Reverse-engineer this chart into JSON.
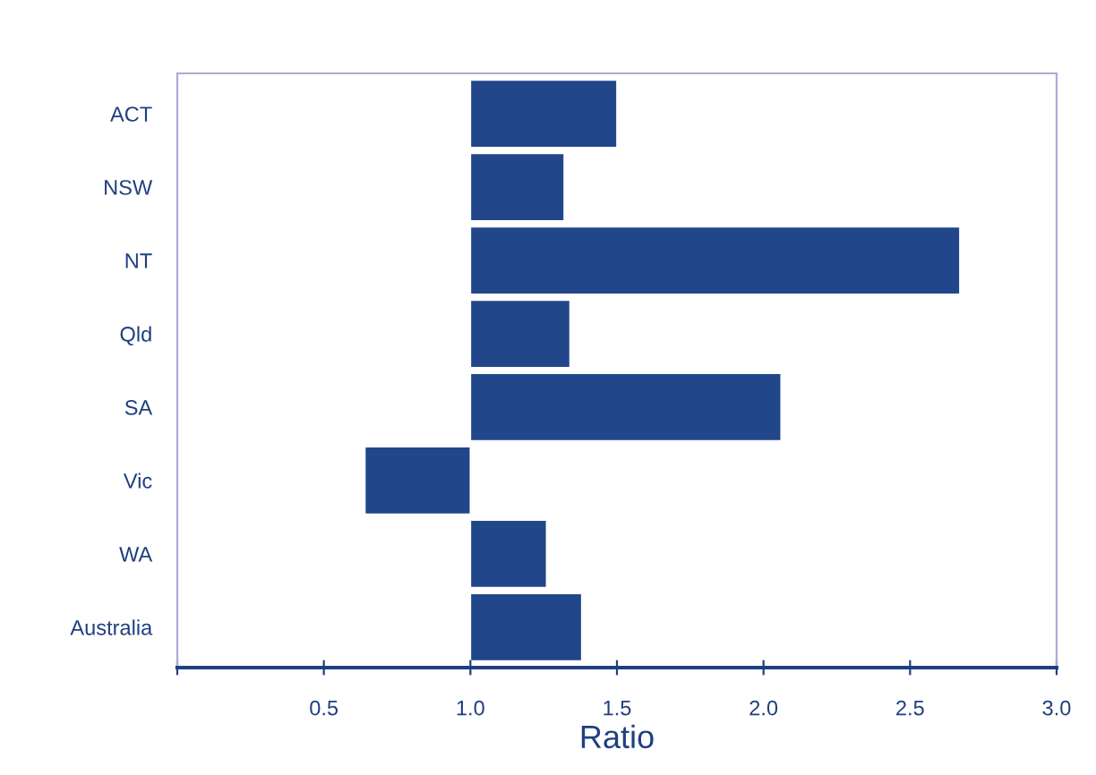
{
  "chart_data": {
    "type": "bar",
    "orientation": "horizontal",
    "xlabel": "Ratio",
    "categories": [
      "ACT",
      "NSW",
      "NT",
      "Qld",
      "SA",
      "Vic",
      "WA",
      "Australia"
    ],
    "base": [
      1,
      1,
      1,
      1,
      1,
      1,
      1,
      1
    ],
    "values": [
      0.5,
      0.32,
      1.67,
      0.34,
      1.06,
      -0.36,
      0.26,
      0.38
    ],
    "color": "#22468a",
    "xlim": [
      0,
      3
    ],
    "xticks": [
      {
        "value": 0,
        "label": null
      },
      0.5,
      {
        "value": 1,
        "label": "1.0"
      },
      1.5,
      {
        "value": 2,
        "label": "2.0"
      },
      2.5,
      {
        "value": 3,
        "label": "3.0"
      }
    ],
    "grid": false
  }
}
